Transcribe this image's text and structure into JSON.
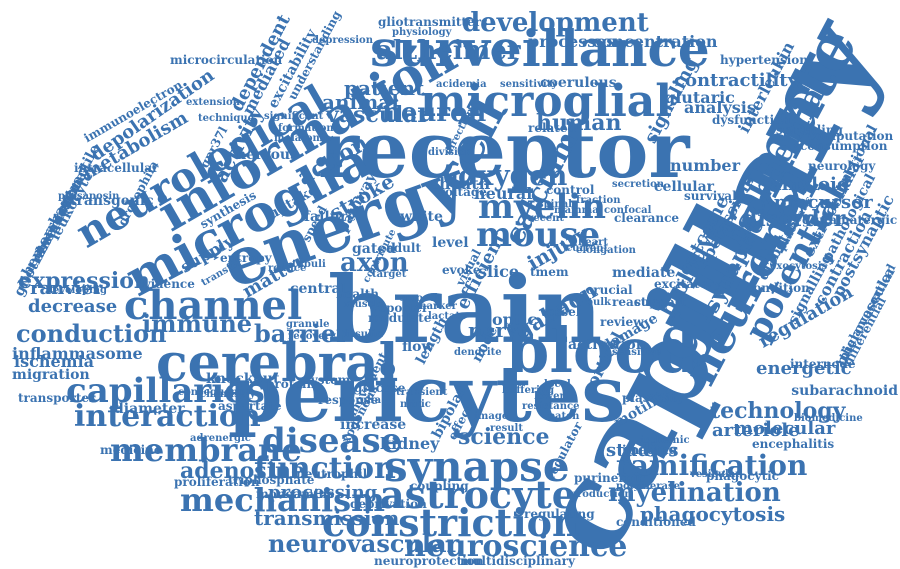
{
  "cloud": {
    "color": "#3b73b1",
    "words": [
      "capillary",
      "pericytes",
      "brain",
      "blood",
      "receptor",
      "energy",
      "cerebral",
      "glutamate",
      "microglia",
      "information",
      "neuronal",
      "surveillance",
      "microglial",
      "channel",
      "synapse",
      "astrocyte",
      "constriction",
      "neurological",
      "mechanism",
      "cell",
      "neuroscience",
      "ramification",
      "neurovascular",
      "function",
      "potential",
      "mouse",
      "myelin",
      "oxygen",
      "disease",
      "membrane",
      "interaction",
      "capillaries",
      "calcium",
      "ischaemia",
      "myelination",
      "alzheimer",
      "development",
      "neuron",
      "immune",
      "conduction",
      "expression",
      "barrier",
      "adenosine",
      "technology",
      "axon",
      "vascular",
      "patient",
      "animal",
      "human",
      "processes",
      "concentration",
      "science",
      "phagocytosis",
      "transmission",
      "processing",
      "action",
      "activity",
      "synaptic",
      "biology",
      "outcome",
      "regulation",
      "studies",
      "review",
      "depolarization",
      "metabolism",
      "stroke",
      "injury",
      "nerve",
      "gabaon",
      "disorder",
      "amyloid",
      "precursor",
      "energetic",
      "diameter",
      "arteriole",
      "molecular",
      "coeruleus",
      "contractility",
      "glutaric",
      "signaling",
      "analysis",
      "interleukin",
      "hypertension",
      "decrease",
      "ranvier",
      "inflammasome",
      "migration",
      "transporter",
      "knockout",
      "protein",
      "system",
      "supply",
      "matter",
      "kidney",
      "increase",
      "damage",
      "potassium",
      "diabetes",
      "extracellular",
      "postsynaptic",
      "contraction",
      "signalling",
      "subarachnoid",
      "internode",
      "ischemia",
      "leukocyte",
      "transgenic",
      "intracellular",
      "gpr37l",
      "nervous",
      "uptake",
      "mediated",
      "dependent",
      "excitability",
      "understanding",
      "depression",
      "gliotransmitters",
      "physiology",
      "microcirculation",
      "immunoelectron",
      "extension",
      "technique",
      "sensitivity",
      "acidemia",
      "significant",
      "melatonin",
      "formation",
      "prosaposin",
      "contractile",
      "hemorrhage",
      "gliotransmission",
      "observational",
      "drosophila",
      "synthesis",
      "entropy",
      "speed",
      "failure",
      "pathway",
      "sheath",
      "voltage",
      "neural",
      "white",
      "gated",
      "adult",
      "level",
      "slice",
      "tmem",
      "central",
      "evidence",
      "mediate",
      "excitatory",
      "reactive",
      "support",
      "condition",
      "medicine",
      "adrenergic",
      "proliferation",
      "triphosphate",
      "neutrophil",
      "aspartate",
      "neuroprotection",
      "multidisciplinary",
      "deprivation",
      "coupling",
      "regulating",
      "conditioned",
      "polymerase",
      "production",
      "purinergic",
      "regulator",
      "cortical",
      "activation",
      "plasticity",
      "motility",
      "imaging",
      "vesicular",
      "phagocytic",
      "encephalitis",
      "biomedicine",
      "ischemic",
      "thalamocortical",
      "microvascular",
      "differential",
      "pathological",
      "glutamatergic",
      "functional",
      "neurology",
      "consumption",
      "computation",
      "spreading",
      "dysfunction",
      "number",
      "cellular",
      "survival",
      "clearance",
      "recent",
      "mammal",
      "current",
      "exocytosis",
      "pancreatic",
      "monoamine",
      "chemistry",
      "consequence",
      "developing",
      "transfer",
      "reduce",
      "tubuli",
      "exogenous",
      "resistance",
      "crucial",
      "control",
      "result",
      "elongation",
      "bipolar",
      "glucose",
      "response",
      "movement",
      "efficient",
      "flow",
      "optic",
      "node",
      "length",
      "effect",
      "granule",
      "recovery",
      "related",
      "contribute",
      "direction",
      "division",
      "confocal",
      "fraction",
      "secretion",
      "sensitive",
      "modulate",
      "reporter",
      "health",
      "target",
      "evoke",
      "visual",
      "bulk",
      "spinal",
      "dendrite",
      "smooth",
      "muscle",
      "vessel",
      "heart",
      "marker",
      "lactate",
      "insulin",
      "nitric",
      "glia",
      "local",
      "lower",
      "image",
      "patch",
      "buffering",
      "transient",
      "coronary",
      "rapid",
      "model",
      "fluorescent",
      "calcium-imaging"
    ]
  }
}
